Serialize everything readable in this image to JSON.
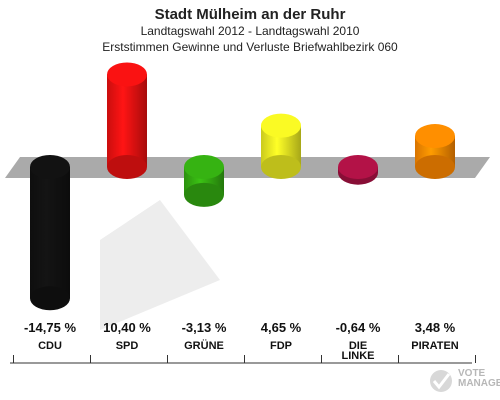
{
  "header": {
    "title": "Stadt Mülheim an der Ruhr",
    "subtitle1": "Landtagswahl 2012 - Landtagswahl 2010",
    "subtitle2": "Erststimmen Gewinne und Verluste Briefwahlbezirk 060"
  },
  "chart_data": {
    "type": "bar",
    "categories": [
      "CDU",
      "SPD",
      "GRÜNE",
      "FDP",
      "DIE LINKE",
      "PIRATEN"
    ],
    "category_lines": [
      [
        "CDU"
      ],
      [
        "SPD"
      ],
      [
        "GRÜNE"
      ],
      [
        "FDP"
      ],
      [
        "DIE",
        "LINKE"
      ],
      [
        "PIRATEN"
      ]
    ],
    "values": [
      -14.75,
      10.4,
      -3.13,
      4.65,
      -0.64,
      3.48
    ],
    "value_labels": [
      "-14,75 %",
      "10,40 %",
      "-3,13 %",
      "4,65 %",
      "-0,64 %",
      "3,48 %"
    ],
    "colors": [
      "#111111",
      "#ee1111",
      "#33aa11",
      "#eeee22",
      "#aa1144",
      "#ff8800"
    ],
    "title": "",
    "xlabel": "",
    "ylabel": "",
    "ylim": [
      -15,
      11
    ],
    "grid": false,
    "legend": "none"
  },
  "logo": {
    "text_line1": "VOTE",
    "text_line2": "MANAGER"
  }
}
